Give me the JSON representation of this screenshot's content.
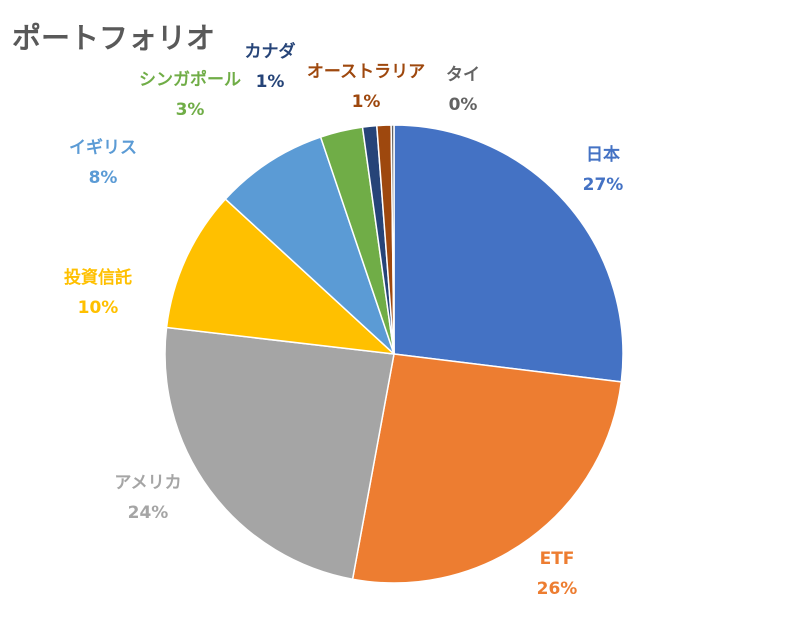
{
  "chart_data": {
    "type": "pie",
    "title": "ポートフォリオ",
    "series": [
      {
        "name": "日本",
        "value": 27,
        "display": "27%",
        "color": "#4472C4"
      },
      {
        "name": "ETF",
        "value": 26,
        "display": "26%",
        "color": "#ED7D31"
      },
      {
        "name": "アメリカ",
        "value": 24,
        "display": "24%",
        "color": "#A5A5A5"
      },
      {
        "name": "投資信託",
        "value": 10,
        "display": "10%",
        "color": "#FFC000"
      },
      {
        "name": "イギリス",
        "value": 8,
        "display": "8%",
        "color": "#5B9BD5"
      },
      {
        "name": "シンガポール",
        "value": 3,
        "display": "3%",
        "color": "#70AD47"
      },
      {
        "name": "カナダ",
        "value": 1,
        "display": "1%",
        "color": "#264478"
      },
      {
        "name": "オーストラリア",
        "value": 1,
        "display": "1%",
        "color": "#9E480E"
      },
      {
        "name": "タイ",
        "value": 0.2,
        "display": "0%",
        "color": "#636363"
      }
    ],
    "legend": "none",
    "data_labels": "category name and percentage"
  }
}
